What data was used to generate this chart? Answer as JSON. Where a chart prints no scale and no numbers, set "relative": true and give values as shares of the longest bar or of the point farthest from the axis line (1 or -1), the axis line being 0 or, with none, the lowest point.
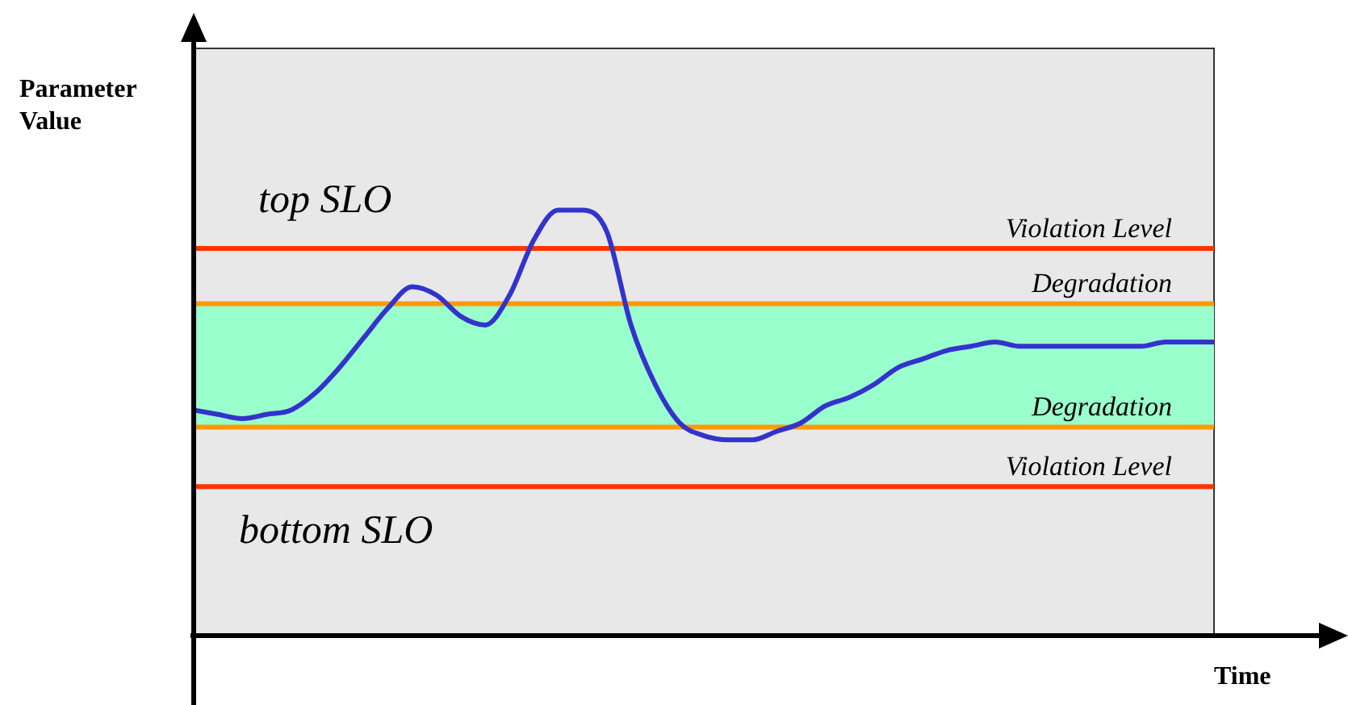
{
  "chart_data": {
    "type": "line",
    "relative": true,
    "xlabel": "Time",
    "ylabel": "Parameter Value",
    "marker": "none",
    "categories": [
      null,
      null,
      null,
      null,
      null,
      null,
      null,
      null,
      null,
      null,
      null,
      null,
      null,
      null,
      null,
      null,
      null,
      null,
      null,
      null,
      null,
      null,
      null,
      null,
      null,
      null,
      null,
      null,
      null,
      null,
      null,
      null,
      null,
      null,
      null,
      null,
      null,
      null,
      null,
      null,
      null,
      null,
      null
    ],
    "series": [
      {
        "color": "#3333cc",
        "values": [
          0.53,
          0.52,
          0.51,
          0.52,
          0.53,
          0.57,
          0.63,
          0.7,
          0.77,
          0.82,
          0.8,
          0.75,
          0.73,
          0.8,
          0.93,
          1,
          1,
          0.95,
          0.73,
          0.59,
          0.5,
          0.47,
          0.46,
          0.46,
          0.48,
          0.5,
          0.54,
          0.56,
          0.59,
          0.63,
          0.65,
          0.67,
          0.68,
          0.69,
          0.68,
          0.68,
          0.68,
          0.68,
          0.68,
          0.68,
          0.69,
          0.69,
          0.69
        ]
      }
    ],
    "bands": [
      {
        "axis": "y",
        "from": 0.49,
        "to": 0.78,
        "color": "#99ffcc"
      }
    ],
    "ref_lines": [
      {
        "axis": "y",
        "value": 0.91,
        "label": "Violation Level",
        "color": "#ff3300"
      },
      {
        "axis": "y",
        "value": 0.78,
        "label": "Degradation",
        "color": "#ff9900"
      },
      {
        "axis": "y",
        "value": 0.49,
        "label": "Degradation",
        "color": "#ff9900"
      },
      {
        "axis": "y",
        "value": 0.35,
        "label": "Violation Level",
        "color": "#ff3300"
      }
    ],
    "annotations": [
      "top SLO",
      "bottom SLO"
    ]
  }
}
